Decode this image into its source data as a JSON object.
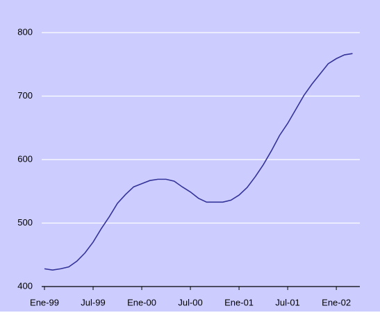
{
  "chart_data": {
    "type": "line",
    "categories": [
      "Ene-99",
      null,
      null,
      null,
      null,
      null,
      "Jul-99",
      null,
      null,
      null,
      null,
      null,
      "Ene-00",
      null,
      null,
      null,
      null,
      null,
      "Jul-00",
      null,
      null,
      null,
      null,
      null,
      "Ene-01",
      null,
      null,
      null,
      null,
      null,
      "Jul-01",
      null,
      null,
      null,
      null,
      null,
      "Ene-02",
      null,
      null
    ],
    "series": [
      {
        "color": "#333399",
        "values": [
          428,
          426,
          428,
          431,
          440,
          453,
          470,
          491,
          510,
          531,
          545,
          557,
          562,
          567,
          569,
          569,
          566,
          557,
          549,
          539,
          533,
          533,
          533,
          536,
          544,
          556,
          573,
          592,
          614,
          638,
          657,
          679,
          701,
          719,
          735,
          751,
          759,
          765,
          767
        ]
      }
    ],
    "ylim": [
      400,
      800
    ],
    "yticks": [
      400,
      500,
      600,
      700,
      800
    ],
    "grid": true
  }
}
